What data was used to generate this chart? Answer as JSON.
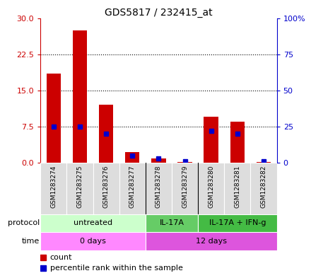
{
  "title": "GDS5817 / 232415_at",
  "samples": [
    "GSM1283274",
    "GSM1283275",
    "GSM1283276",
    "GSM1283277",
    "GSM1283278",
    "GSM1283279",
    "GSM1283280",
    "GSM1283281",
    "GSM1283282"
  ],
  "count_values": [
    18.5,
    27.5,
    12.0,
    2.2,
    0.8,
    0.15,
    9.5,
    8.5,
    0.12
  ],
  "percentile_values": [
    25,
    25,
    20,
    5,
    3,
    1,
    22,
    20,
    1
  ],
  "ylim_left": [
    0,
    30
  ],
  "ylim_right": [
    0,
    100
  ],
  "yticks_left": [
    0,
    7.5,
    15,
    22.5,
    30
  ],
  "yticks_right": [
    0,
    25,
    50,
    75,
    100
  ],
  "ytick_labels_right": [
    "0",
    "25",
    "50",
    "75",
    "100%"
  ],
  "bar_color": "#cc0000",
  "dot_color": "#0000cc",
  "protocol_groups": [
    {
      "label": "untreated",
      "samples": [
        0,
        1,
        2,
        3
      ],
      "color": "#ccffcc"
    },
    {
      "label": "IL-17A",
      "samples": [
        4,
        5
      ],
      "color": "#66cc66"
    },
    {
      "label": "IL-17A + IFN-g",
      "samples": [
        6,
        7,
        8
      ],
      "color": "#44bb44"
    }
  ],
  "time_groups": [
    {
      "label": "0 days",
      "samples": [
        0,
        1,
        2,
        3
      ],
      "color": "#ff88ff"
    },
    {
      "label": "12 days",
      "samples": [
        4,
        5,
        6,
        7,
        8
      ],
      "color": "#dd55dd"
    }
  ],
  "protocol_label": "protocol",
  "time_label": "time",
  "legend_count_label": "count",
  "legend_pct_label": "percentile rank within the sample",
  "grid_color": "black",
  "background_color": "#ffffff",
  "axis_left_color": "#cc0000",
  "axis_right_color": "#0000cc",
  "bar_width": 0.55,
  "sample_cell_color": "#dddddd"
}
